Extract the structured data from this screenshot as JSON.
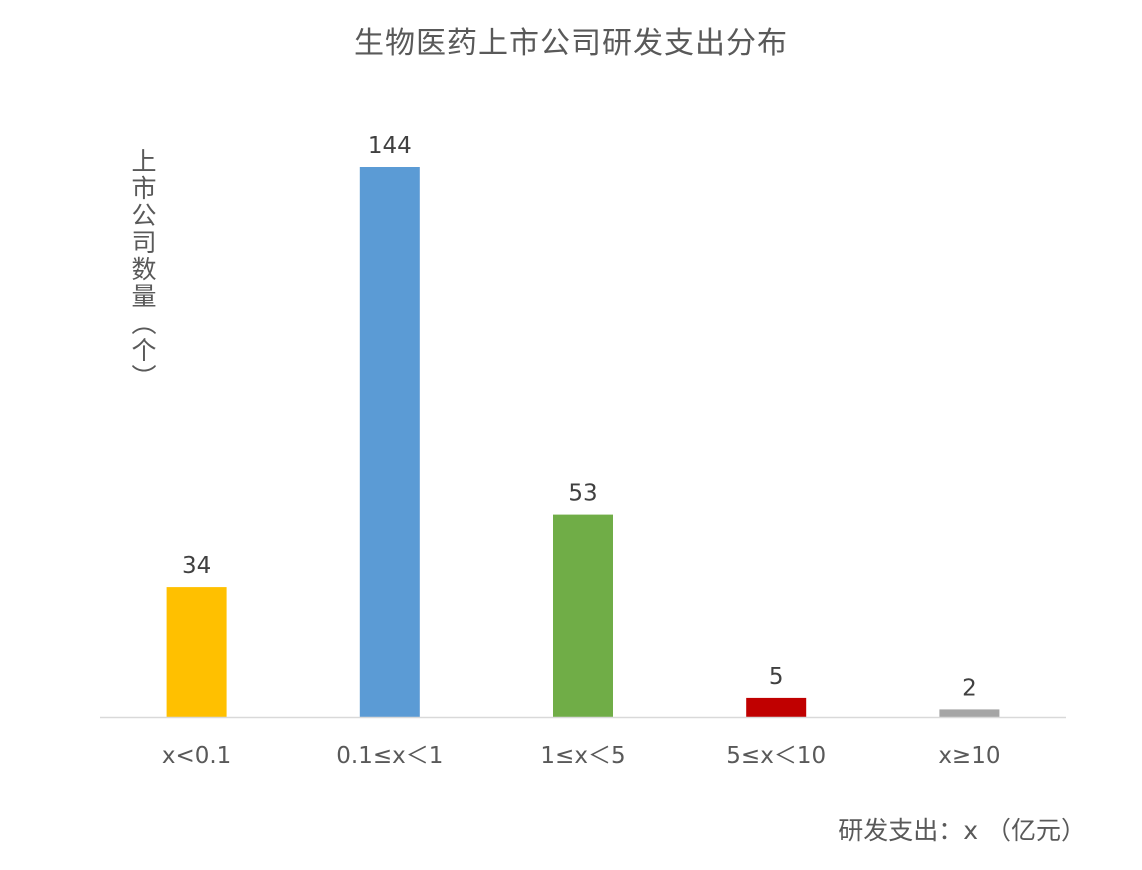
{
  "chart_data": {
    "type": "bar",
    "title": "生物医药上市公司研发支出分布",
    "ylabel": "上市公司数量（个）",
    "xlabel": "研发支出：x （亿元）",
    "categories": [
      "x<0.1",
      "0.1≤x＜1",
      "1≤x＜5",
      "5≤x＜10",
      "x≥10"
    ],
    "values": [
      34,
      144,
      53,
      5,
      2
    ],
    "colors": [
      "#FFC000",
      "#5B9BD5",
      "#70AD47",
      "#C00000",
      "#A5A5A5"
    ],
    "ylim": [
      0,
      150
    ],
    "grid": false,
    "legend": "none",
    "data_labels": true
  }
}
